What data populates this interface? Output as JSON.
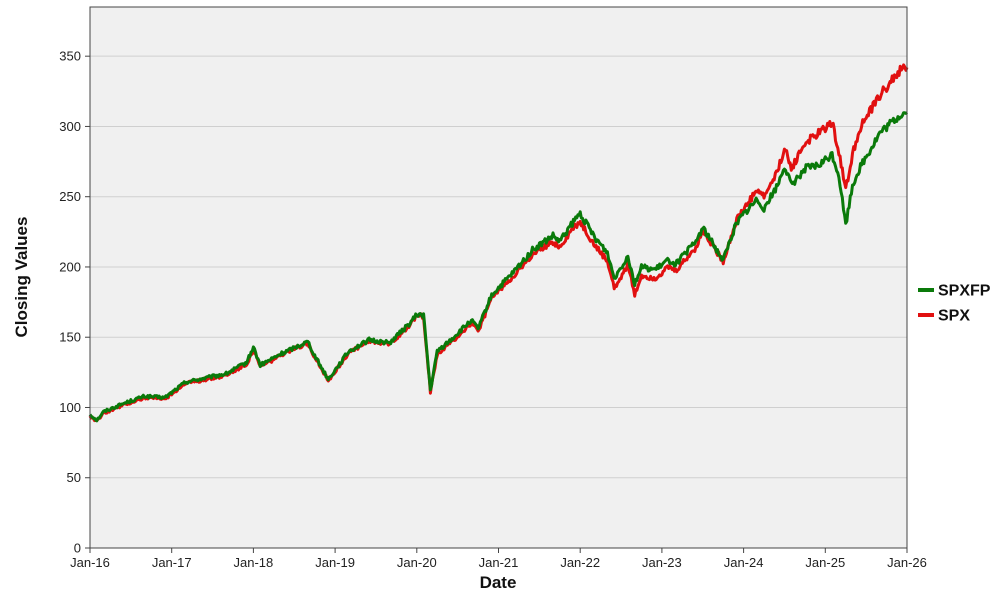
{
  "chart_data": {
    "type": "line",
    "title": "",
    "xlabel": "Date",
    "ylabel": "Closing Values",
    "x_tick_labels": [
      "Jan-16",
      "Jan-17",
      "Jan-18",
      "Jan-19",
      "Jan-20",
      "Jan-21",
      "Jan-22",
      "Jan-23",
      "Jan-24",
      "Jan-25",
      "Jan-26"
    ],
    "y_tick_labels": [
      "0",
      "50",
      "100",
      "150",
      "200",
      "250",
      "300",
      "350"
    ],
    "xlim": [
      "2016-01",
      "2026-01"
    ],
    "ylim": [
      0,
      385
    ],
    "grid": true,
    "legend_position": "right",
    "series": [
      {
        "name": "SPXFP",
        "color": "#0a7a0a",
        "x": [
          "2016-01",
          "2016-02",
          "2016-03",
          "2016-06",
          "2016-09",
          "2016-12",
          "2017-03",
          "2017-06",
          "2017-09",
          "2017-12",
          "2018-01",
          "2018-02",
          "2018-05",
          "2018-09",
          "2018-10",
          "2018-12",
          "2019-03",
          "2019-06",
          "2019-09",
          "2019-12",
          "2020-01",
          "2020-02",
          "2020-03",
          "2020-04",
          "2020-06",
          "2020-09",
          "2020-10",
          "2020-12",
          "2021-03",
          "2021-06",
          "2021-09",
          "2021-10",
          "2021-12",
          "2022-01",
          "2022-03",
          "2022-05",
          "2022-06",
          "2022-08",
          "2022-09",
          "2022-10",
          "2022-12",
          "2023-02",
          "2023-03",
          "2023-06",
          "2023-07",
          "2023-10",
          "2023-12",
          "2024-03",
          "2024-04",
          "2024-06",
          "2024-07",
          "2024-08",
          "2024-10",
          "2024-12",
          "2025-02",
          "2025-03",
          "2025-04",
          "2025-05",
          "2025-06",
          "2025-09",
          "2025-12",
          "2026-01"
        ],
        "values": [
          95,
          91,
          97,
          103,
          108,
          107,
          118,
          121,
          124,
          132,
          143,
          130,
          138,
          147,
          137,
          120,
          140,
          148,
          146,
          160,
          166,
          166,
          112,
          140,
          148,
          162,
          156,
          180,
          195,
          212,
          222,
          218,
          232,
          238,
          222,
          210,
          192,
          208,
          188,
          200,
          198,
          205,
          202,
          218,
          228,
          205,
          232,
          248,
          242,
          258,
          272,
          258,
          270,
          272,
          280,
          265,
          230,
          258,
          270,
          295,
          308,
          310
        ]
      },
      {
        "name": "SPX",
        "color": "#e11010",
        "x": [
          "2016-01",
          "2016-02",
          "2016-03",
          "2016-06",
          "2016-09",
          "2016-12",
          "2017-03",
          "2017-06",
          "2017-09",
          "2017-12",
          "2018-01",
          "2018-02",
          "2018-05",
          "2018-09",
          "2018-10",
          "2018-12",
          "2019-03",
          "2019-06",
          "2019-09",
          "2019-12",
          "2020-01",
          "2020-02",
          "2020-03",
          "2020-04",
          "2020-06",
          "2020-09",
          "2020-10",
          "2020-12",
          "2021-03",
          "2021-06",
          "2021-09",
          "2021-10",
          "2021-12",
          "2022-01",
          "2022-03",
          "2022-05",
          "2022-06",
          "2022-08",
          "2022-09",
          "2022-10",
          "2022-12",
          "2023-02",
          "2023-03",
          "2023-06",
          "2023-07",
          "2023-10",
          "2023-12",
          "2024-03",
          "2024-04",
          "2024-06",
          "2024-07",
          "2024-08",
          "2024-10",
          "2024-12",
          "2025-02",
          "2025-03",
          "2025-04",
          "2025-05",
          "2025-06",
          "2025-09",
          "2025-12",
          "2026-01"
        ],
        "values": [
          94,
          90,
          96,
          102,
          107,
          106,
          117,
          120,
          123,
          131,
          141,
          129,
          137,
          146,
          136,
          119,
          139,
          147,
          145,
          159,
          165,
          165,
          111,
          138,
          146,
          160,
          154,
          178,
          193,
          208,
          218,
          214,
          228,
          232,
          216,
          204,
          185,
          202,
          180,
          194,
          192,
          200,
          197,
          214,
          226,
          204,
          234,
          255,
          250,
          268,
          285,
          270,
          288,
          295,
          303,
          282,
          255,
          280,
          298,
          322,
          340,
          342
        ]
      }
    ]
  }
}
